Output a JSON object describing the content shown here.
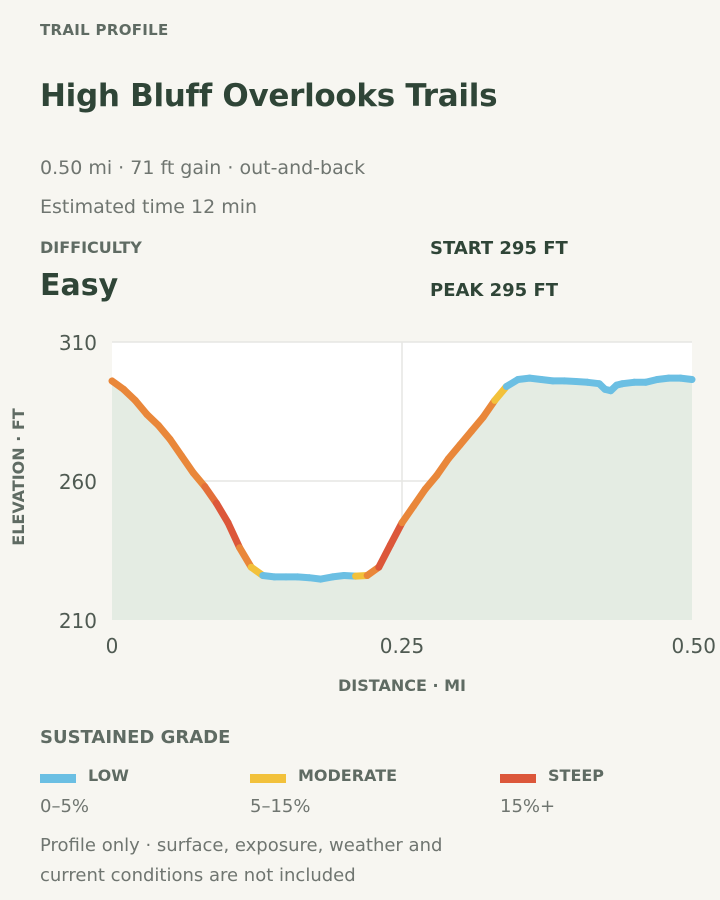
{
  "header": {
    "eyebrow": "TRAIL PROFILE",
    "title": "High Bluff Overlooks Trails",
    "meta_line1": "0.50 mi · 71 ft gain · out-and-back",
    "meta_line2": "Estimated time 12 min"
  },
  "difficulty": {
    "label": "DIFFICULTY",
    "value": "Easy"
  },
  "stats": {
    "start": "START 295 FT",
    "peak": "PEAK 295 FT"
  },
  "colors": {
    "low": "#6bbfe3",
    "moderate": "#f2c13b",
    "steep": "#dc573a",
    "orange": "#e9873a",
    "area_fill": "#e4ece3"
  },
  "chart_data": {
    "type": "area",
    "xlabel": "DISTANCE · MI",
    "ylabel": "ELEVATION · FT",
    "xlim": [
      0,
      0.5
    ],
    "ylim": [
      210,
      310
    ],
    "x_ticks": [
      0,
      0.25,
      0.5
    ],
    "x_tick_labels": [
      "0",
      "0.25",
      "0.50"
    ],
    "y_ticks": [
      210,
      260,
      310
    ],
    "y_tick_labels": [
      "210",
      "260",
      "310"
    ],
    "grid": true,
    "points": [
      [
        0.0,
        296,
        "steep-mod"
      ],
      [
        0.01,
        293,
        "orange"
      ],
      [
        0.02,
        289,
        "orange"
      ],
      [
        0.03,
        284,
        "orange"
      ],
      [
        0.04,
        280,
        "orange"
      ],
      [
        0.05,
        275,
        "orange"
      ],
      [
        0.06,
        269,
        "orange"
      ],
      [
        0.07,
        263,
        "orange"
      ],
      [
        0.08,
        258,
        "orange"
      ],
      [
        0.09,
        252,
        "orange-red"
      ],
      [
        0.1,
        245,
        "steep"
      ],
      [
        0.11,
        236,
        "steep"
      ],
      [
        0.12,
        229,
        "orange"
      ],
      [
        0.13,
        226,
        "moderate"
      ],
      [
        0.14,
        225.5,
        "low"
      ],
      [
        0.15,
        225.5,
        "low"
      ],
      [
        0.16,
        225.5,
        "low"
      ],
      [
        0.17,
        225.2,
        "low"
      ],
      [
        0.18,
        224.7,
        "low"
      ],
      [
        0.19,
        225.5,
        "low"
      ],
      [
        0.2,
        226,
        "low"
      ],
      [
        0.21,
        225.8,
        "low"
      ],
      [
        0.22,
        226,
        "moderate"
      ],
      [
        0.23,
        229,
        "orange"
      ],
      [
        0.24,
        237,
        "steep"
      ],
      [
        0.25,
        245,
        "steep"
      ],
      [
        0.26,
        251,
        "orange"
      ],
      [
        0.27,
        257,
        "orange"
      ],
      [
        0.28,
        262,
        "orange"
      ],
      [
        0.29,
        268,
        "orange"
      ],
      [
        0.3,
        273,
        "orange"
      ],
      [
        0.31,
        278,
        "orange"
      ],
      [
        0.32,
        283,
        "orange"
      ],
      [
        0.33,
        289,
        "orange"
      ],
      [
        0.34,
        294,
        "moderate"
      ],
      [
        0.35,
        296.5,
        "low"
      ],
      [
        0.36,
        297,
        "low"
      ],
      [
        0.37,
        296.5,
        "low"
      ],
      [
        0.38,
        296,
        "low"
      ],
      [
        0.39,
        296,
        "low"
      ],
      [
        0.4,
        295.8,
        "low"
      ],
      [
        0.41,
        295.5,
        "low"
      ],
      [
        0.42,
        295,
        "low"
      ],
      [
        0.425,
        293,
        "low"
      ],
      [
        0.43,
        292.5,
        "low"
      ],
      [
        0.435,
        294.5,
        "low"
      ],
      [
        0.44,
        295,
        "low"
      ],
      [
        0.45,
        295.5,
        "low"
      ],
      [
        0.46,
        295.5,
        "low"
      ],
      [
        0.47,
        296.5,
        "low"
      ],
      [
        0.48,
        297,
        "low"
      ],
      [
        0.49,
        297,
        "low"
      ],
      [
        0.5,
        296.5,
        "low"
      ]
    ]
  },
  "legend": {
    "title": "SUSTAINED GRADE",
    "items": [
      {
        "name": "low",
        "label": "LOW",
        "range": "0–5%"
      },
      {
        "name": "moderate",
        "label": "MODERATE",
        "range": "5–15%"
      },
      {
        "name": "steep",
        "label": "STEEP",
        "range": "15%+"
      }
    ]
  },
  "footnote": "Profile only · surface, exposure, weather and current conditions are not included"
}
